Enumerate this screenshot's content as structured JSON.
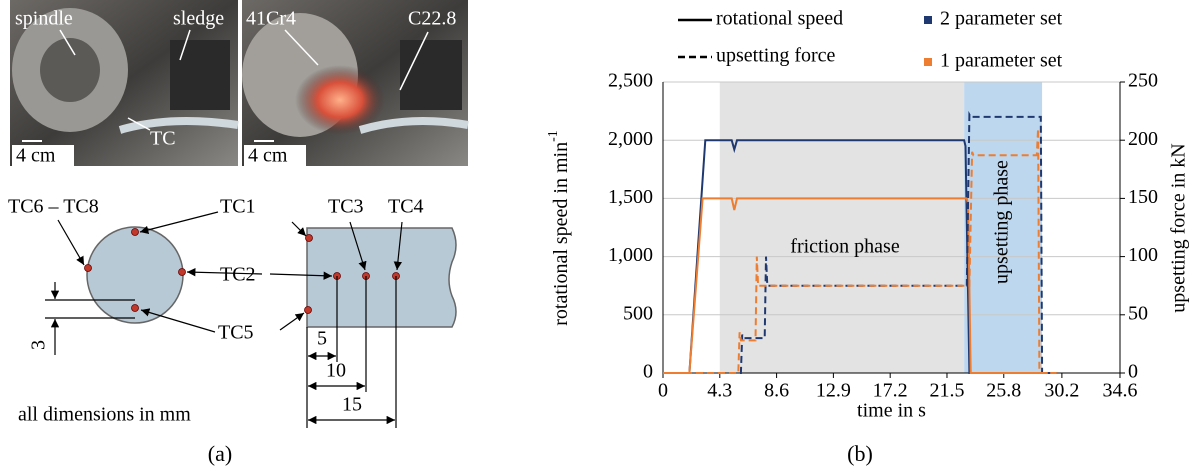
{
  "panel_a": {
    "photo_labels": [
      "spindle",
      "sledge",
      "41Cr4",
      "C22.8",
      "TC"
    ],
    "scale_bars": [
      "4 cm",
      "4 cm"
    ],
    "sensors": [
      "TC6 – TC8",
      "TC1",
      "TC2",
      "TC3",
      "TC4",
      "TC5"
    ],
    "dimensions": [
      "3",
      "5",
      "10",
      "15"
    ],
    "note": "all dimensions in mm",
    "caption": "(a)"
  },
  "chart_data": {
    "type": "line",
    "caption": "(b)",
    "xlabel": "time in s",
    "ylabel": "rotational speed in min",
    "ylabel_sup": "-1",
    "y2label": "upsetting force in kN",
    "xlim": [
      0,
      34.6
    ],
    "xticks": [
      0,
      4.3,
      8.6,
      12.9,
      17.2,
      21.5,
      25.8,
      30.2,
      34.6
    ],
    "ylim": [
      0,
      2500
    ],
    "yticks": [
      0,
      500,
      {
        "value": 1000,
        "label": "1,000"
      },
      {
        "value": 1500,
        "label": "1,500"
      },
      {
        "value": 2000,
        "label": "2,000"
      },
      {
        "value": 2500,
        "label": "2,500"
      }
    ],
    "y2lim": [
      0,
      250
    ],
    "y2ticks": [
      0,
      50,
      100,
      150,
      200,
      250
    ],
    "grid": true,
    "phases": [
      {
        "label": "friction phase",
        "start": 4.3,
        "end": 22.8,
        "color": "#e3e3e3"
      },
      {
        "label": "upsetting phase",
        "start": 22.8,
        "end": 28.7,
        "color": "#bdd7ee"
      }
    ],
    "sets": [
      {
        "name": "2 parameter set",
        "color": "#1f3870"
      },
      {
        "name": "1 parameter set",
        "color": "#ed7d31"
      }
    ],
    "series": [
      {
        "name": "rotational speed",
        "dash": false,
        "axis": "y",
        "lines": [
          {
            "x": [
              0,
              2.0,
              3.2,
              5.2,
              5.4,
              5.6,
              22.8,
              22.9,
              23.2,
              29.8
            ],
            "values": [
              0,
              0,
              2000,
              2000,
              1920,
              2000,
              2000,
              1950,
              0,
              0
            ]
          },
          {
            "x": [
              0,
              2.0,
              3.0,
              5.2,
              5.4,
              5.6,
              23.0,
              23.1,
              23.3,
              29.8
            ],
            "values": [
              0,
              0,
              1500,
              1500,
              1400,
              1500,
              1500,
              1450,
              0,
              0
            ]
          }
        ]
      },
      {
        "name": "upsetting force",
        "dash": true,
        "axis": "y2",
        "lines": [
          {
            "x": [
              0,
              5.9,
              6.0,
              6.1,
              7.7,
              7.8,
              7.9,
              22.9,
              23.0,
              23.2,
              23.3,
              28.6,
              28.7,
              29.8
            ],
            "values": [
              0,
              0,
              33,
              30,
              30,
              100,
              75,
              75,
              75,
              222,
              220,
              220,
              0,
              0
            ]
          },
          {
            "x": [
              0,
              5.7,
              5.8,
              5.9,
              7.0,
              7.1,
              7.2,
              23.1,
              23.2,
              23.4,
              23.5,
              28.3,
              28.4,
              28.5,
              29.8
            ],
            "values": [
              0,
              0,
              35,
              28,
              28,
              100,
              75,
              75,
              75,
              190,
              187,
              187,
              210,
              0,
              0
            ]
          }
        ]
      }
    ]
  }
}
